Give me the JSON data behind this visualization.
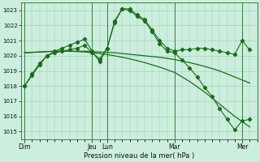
{
  "xlabel": "Pression niveau de la mer( hPa )",
  "ylim": [
    1014.5,
    1023.5
  ],
  "yticks": [
    1015,
    1016,
    1017,
    1018,
    1019,
    1020,
    1021,
    1022,
    1023
  ],
  "bg_color": "#cceedd",
  "grid_color": "#99ccbb",
  "line_color": "#1a6e1a",
  "day_labels": [
    "Dim",
    "Jeu",
    "Lun",
    "Mar",
    "Mer"
  ],
  "day_positions": [
    0,
    9,
    11,
    20,
    29
  ],
  "xlim": [
    -0.5,
    31
  ],
  "line1_x": [
    0,
    1,
    2,
    3,
    4,
    5,
    6,
    7,
    8,
    9,
    10,
    11,
    12,
    13,
    14,
    15,
    16,
    17,
    18,
    19,
    20,
    21,
    22,
    23,
    24,
    25,
    26,
    27,
    28,
    29,
    30
  ],
  "line1_y": [
    1018.0,
    1018.7,
    1019.4,
    1020.0,
    1020.3,
    1020.5,
    1020.7,
    1020.9,
    1021.1,
    1020.3,
    1019.6,
    1020.5,
    1022.2,
    1023.1,
    1023.1,
    1022.7,
    1022.4,
    1021.7,
    1021.0,
    1020.5,
    1020.3,
    1020.4,
    1020.4,
    1020.5,
    1020.5,
    1020.4,
    1020.3,
    1020.2,
    1020.1,
    1021.0,
    1020.4
  ],
  "line2_x": [
    0,
    1,
    2,
    3,
    4,
    5,
    6,
    7,
    8,
    9,
    10,
    11,
    12,
    13,
    14,
    15,
    16,
    17,
    18,
    19,
    20,
    21,
    22,
    23,
    24,
    25,
    26,
    27,
    28,
    29,
    30
  ],
  "line2_y": [
    1018.0,
    1018.8,
    1019.5,
    1020.0,
    1020.2,
    1020.3,
    1020.4,
    1020.5,
    1020.7,
    1020.2,
    1019.8,
    1020.5,
    1022.3,
    1023.1,
    1023.0,
    1022.6,
    1022.3,
    1021.6,
    1020.8,
    1020.3,
    1020.2,
    1019.7,
    1019.2,
    1018.6,
    1017.9,
    1017.3,
    1016.5,
    1015.8,
    1015.1,
    1015.7,
    1015.8
  ],
  "line3_x": [
    0,
    2,
    4,
    6,
    8,
    10,
    12,
    14,
    16,
    18,
    20,
    22,
    24,
    26,
    28,
    30
  ],
  "line3_y": [
    1020.2,
    1020.25,
    1020.3,
    1020.3,
    1020.3,
    1020.25,
    1020.2,
    1020.1,
    1020.0,
    1019.9,
    1019.75,
    1019.55,
    1019.3,
    1019.0,
    1018.6,
    1018.2
  ],
  "line4_x": [
    0,
    2,
    4,
    6,
    8,
    10,
    12,
    14,
    16,
    18,
    20,
    22,
    24,
    26,
    28,
    30
  ],
  "line4_y": [
    1020.2,
    1020.25,
    1020.3,
    1020.3,
    1020.25,
    1020.15,
    1020.0,
    1019.8,
    1019.55,
    1019.25,
    1018.9,
    1018.3,
    1017.6,
    1016.8,
    1016.0,
    1015.3
  ]
}
